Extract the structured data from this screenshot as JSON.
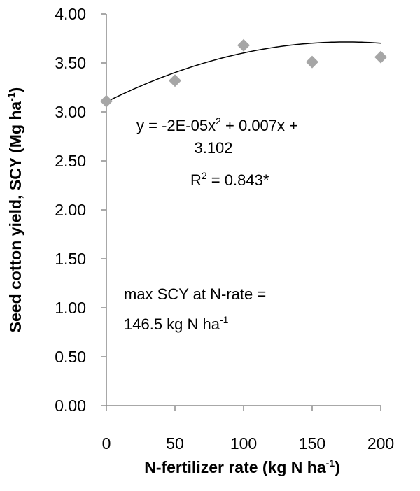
{
  "chart_data": {
    "type": "scatter",
    "x": [
      0,
      50,
      100,
      150,
      200
    ],
    "y": [
      3.11,
      3.32,
      3.68,
      3.51,
      3.56
    ],
    "xlim": [
      0,
      200
    ],
    "ylim": [
      0,
      4
    ],
    "x_ticks": [
      "0",
      "50",
      "100",
      "150",
      "200"
    ],
    "y_ticks": [
      "0.00",
      "0.50",
      "1.00",
      "1.50",
      "2.00",
      "2.50",
      "3.00",
      "3.50",
      "4.00"
    ],
    "xlabel": {
      "main": "N-fertilizer rate (kg N ha",
      "sup": "-1",
      "end": ")"
    },
    "ylabel": {
      "main": "Seed cotton yield, SCY (Mg ha",
      "sup": "-1",
      "end": ")"
    },
    "marker": {
      "shape": "diamond",
      "color": "#a6a6a6"
    },
    "trendline": {
      "type": "polynomial",
      "coefficients": [
        -2e-05,
        0.007,
        3.102
      ],
      "color": "#000000"
    },
    "grid": false,
    "annotations": {
      "equation": {
        "line1": {
          "a": "y = -2E-05x",
          "sup": "2",
          "b": " + 0.007x +"
        },
        "line2": "3.102",
        "r2": {
          "a": "R",
          "sup": "2",
          "b": " = 0.843*"
        }
      },
      "max_note": {
        "line1": "max SCY at N-rate =",
        "line2": {
          "a": "146.5 kg N ha",
          "sup": "-1"
        }
      }
    }
  }
}
